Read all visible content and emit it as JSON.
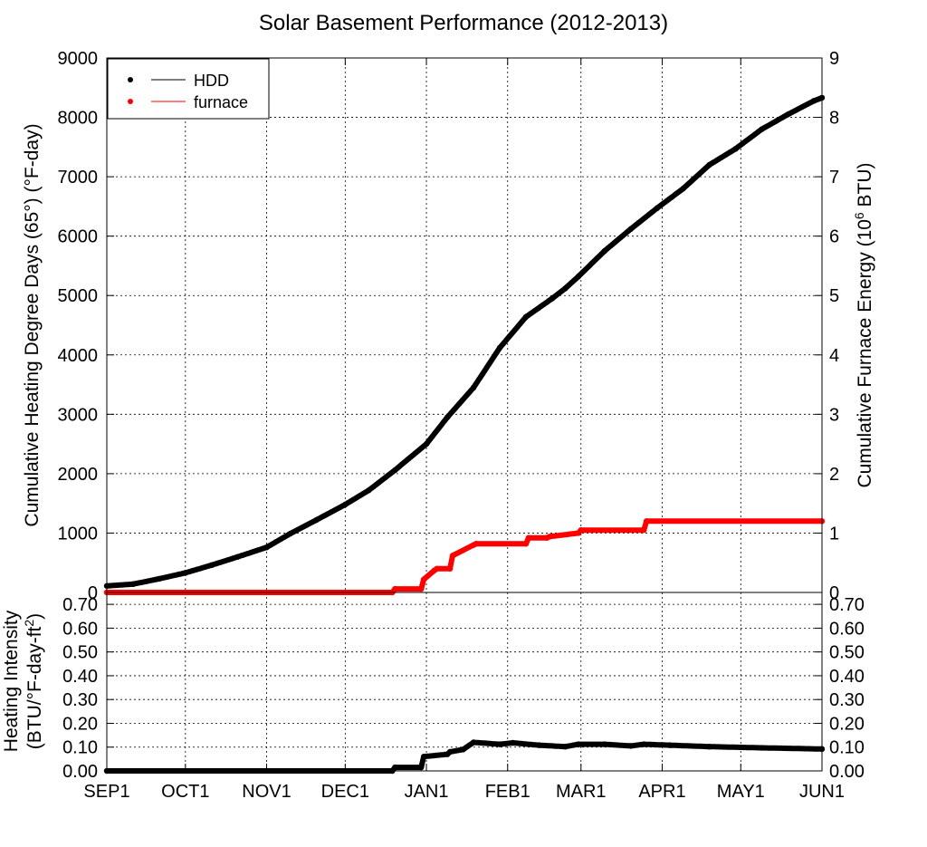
{
  "title": "Solar Basement Performance (2012-2013)",
  "colors": {
    "hdd": "#000000",
    "furnace": "#ff0000",
    "grid": "#000000"
  },
  "chart_data": [
    {
      "type": "line",
      "title": "Solar Basement Performance (2012-2013)",
      "ylabel": "Cumulative Heating Degree Days (65°) (°F-day)",
      "y2label": "Cumulative Furnace Energy (10^6 BTU)",
      "ylim": [
        0,
        9000
      ],
      "y2lim": [
        0,
        9
      ],
      "yticks": [
        "0",
        "1000",
        "2000",
        "3000",
        "4000",
        "5000",
        "6000",
        "7000",
        "8000",
        "9000"
      ],
      "y2ticks": [
        "0",
        "1",
        "2",
        "3",
        "4",
        "5",
        "6",
        "7",
        "8",
        "9"
      ],
      "grid": true,
      "legend_position": "top-left",
      "x_unit": "days since Sep 1, 2012",
      "xlim": [
        0,
        273
      ],
      "series": [
        {
          "name": "HDD",
          "axis": "left",
          "x": [
            0,
            10,
            20,
            30,
            40,
            50,
            61,
            70,
            80,
            91,
            100,
            110,
            122,
            130,
            140,
            150,
            160,
            170,
            175,
            180,
            190,
            200,
            210,
            220,
            230,
            240,
            250,
            260,
            270,
            273
          ],
          "y": [
            110,
            140,
            230,
            330,
            460,
            600,
            760,
            990,
            1220,
            1480,
            1720,
            2060,
            2500,
            2950,
            3450,
            4120,
            4640,
            4950,
            5120,
            5320,
            5750,
            6120,
            6470,
            6800,
            7200,
            7470,
            7800,
            8050,
            8280,
            8330
          ]
        },
        {
          "name": "furnace",
          "axis": "right",
          "x": [
            0,
            109,
            110,
            120,
            121,
            125,
            126,
            131,
            132,
            140,
            141,
            160,
            161,
            168,
            169,
            180,
            181,
            205,
            206,
            273
          ],
          "y": [
            0,
            0,
            0.06,
            0.06,
            0.22,
            0.37,
            0.4,
            0.4,
            0.62,
            0.8,
            0.82,
            0.82,
            0.92,
            0.92,
            0.94,
            1.0,
            1.05,
            1.05,
            1.2,
            1.2
          ]
        }
      ]
    },
    {
      "type": "line",
      "ylabel_line1": "Heating Intensity",
      "ylabel_line2": "(BTU/°F-day-ft²)",
      "ylim": [
        0,
        0.75
      ],
      "yticks": [
        "0.00",
        "0.10",
        "0.20",
        "0.30",
        "0.40",
        "0.50",
        "0.60",
        "0.70"
      ],
      "y2ticks": [
        "0.00",
        "0.10",
        "0.20",
        "0.30",
        "0.40",
        "0.50",
        "0.60",
        "0.70"
      ],
      "grid": true,
      "x_unit": "days since Sep 1, 2012",
      "xlim": [
        0,
        273
      ],
      "xticks": [
        {
          "label": "SEP1",
          "day": 0
        },
        {
          "label": "OCT1",
          "day": 30
        },
        {
          "label": "NOV1",
          "day": 61
        },
        {
          "label": "DEC1",
          "day": 91
        },
        {
          "label": "JAN1",
          "day": 122
        },
        {
          "label": "FEB1",
          "day": 153
        },
        {
          "label": "MAR1",
          "day": 181
        },
        {
          "label": "APR1",
          "day": 212
        },
        {
          "label": "MAY1",
          "day": 242
        },
        {
          "label": "JUN1",
          "day": 273
        }
      ],
      "series": [
        {
          "name": "intensity",
          "x": [
            0,
            109,
            110,
            120,
            121,
            130,
            131,
            136,
            140,
            150,
            155,
            165,
            175,
            180,
            190,
            200,
            205,
            215,
            230,
            250,
            273
          ],
          "y": [
            0,
            0,
            0.015,
            0.015,
            0.06,
            0.07,
            0.08,
            0.09,
            0.12,
            0.112,
            0.118,
            0.108,
            0.102,
            0.112,
            0.112,
            0.105,
            0.112,
            0.108,
            0.102,
            0.097,
            0.092
          ]
        }
      ]
    }
  ],
  "legend": [
    {
      "label": "HDD",
      "color": "#000000"
    },
    {
      "label": "furnace",
      "color": "#ff0000"
    }
  ]
}
